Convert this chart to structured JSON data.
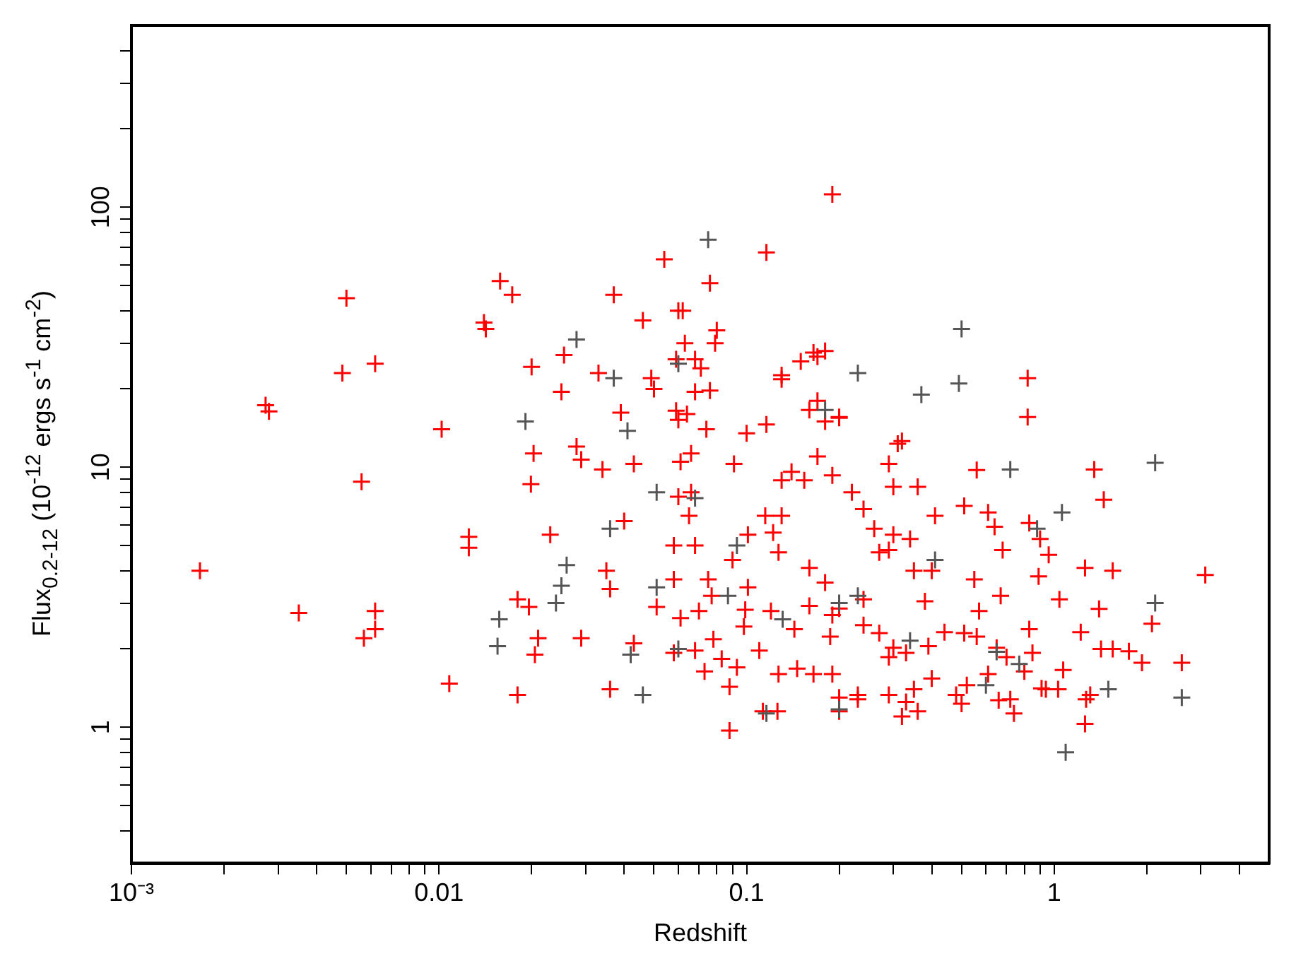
{
  "chart_data": {
    "type": "scatter",
    "xlabel": "Redshift",
    "ylabel": "Flux$_{0.2-12}$ (10$^{-12}$ ergs s$^{-1}$ cm$^{-2}$)",
    "log": "xy",
    "grid": false,
    "legend": false,
    "marker": "cross",
    "xlim": [
      0.001,
      5
    ],
    "ylim": [
      0.3,
      500
    ],
    "xticks": [
      {
        "value": 0.001,
        "label": "10⁻³"
      },
      {
        "value": 0.002,
        "label": null
      },
      {
        "value": 0.003,
        "label": null
      },
      {
        "value": 0.004,
        "label": null
      },
      {
        "value": 0.005,
        "label": null
      },
      {
        "value": 0.006,
        "label": null
      },
      {
        "value": 0.007,
        "label": null
      },
      {
        "value": 0.008,
        "label": null
      },
      {
        "value": 0.009,
        "label": null
      },
      0.01,
      {
        "value": 0.02,
        "label": null
      },
      {
        "value": 0.03,
        "label": null
      },
      {
        "value": 0.04,
        "label": null
      },
      {
        "value": 0.05,
        "label": null
      },
      {
        "value": 0.06,
        "label": null
      },
      {
        "value": 0.07,
        "label": null
      },
      {
        "value": 0.08,
        "label": null
      },
      {
        "value": 0.09,
        "label": null
      },
      0.1,
      {
        "value": 0.2,
        "label": null
      },
      {
        "value": 0.3,
        "label": null
      },
      {
        "value": 0.4,
        "label": null
      },
      {
        "value": 0.5,
        "label": null
      },
      {
        "value": 0.6,
        "label": null
      },
      {
        "value": 0.7,
        "label": null
      },
      {
        "value": 0.8,
        "label": null
      },
      {
        "value": 0.9,
        "label": null
      },
      1,
      {
        "value": 2,
        "label": null
      },
      {
        "value": 3,
        "label": null
      },
      {
        "value": 4,
        "label": null
      }
    ],
    "yticks": [
      {
        "value": 0.4,
        "label": null
      },
      {
        "value": 0.5,
        "label": null
      },
      {
        "value": 0.6,
        "label": null
      },
      {
        "value": 0.7,
        "label": null
      },
      {
        "value": 0.8,
        "label": null
      },
      {
        "value": 0.9,
        "label": null
      },
      1,
      {
        "value": 2,
        "label": null
      },
      {
        "value": 3,
        "label": null
      },
      {
        "value": 4,
        "label": null
      },
      {
        "value": 5,
        "label": null
      },
      {
        "value": 6,
        "label": null
      },
      {
        "value": 7,
        "label": null
      },
      {
        "value": 8,
        "label": null
      },
      {
        "value": 9,
        "label": null
      },
      10,
      {
        "value": 20,
        "label": null
      },
      {
        "value": 30,
        "label": null
      },
      {
        "value": 40,
        "label": null
      },
      {
        "value": 50,
        "label": null
      },
      {
        "value": 60,
        "label": null
      },
      {
        "value": 70,
        "label": null
      },
      {
        "value": 80,
        "label": null
      },
      {
        "value": 90,
        "label": null
      },
      100,
      {
        "value": 200,
        "label": null
      },
      {
        "value": 300,
        "label": null
      },
      {
        "value": 400,
        "label": null
      }
    ],
    "series": [
      {
        "color": "#555555",
        "x": [
          0.028,
          0.037,
          0.06,
          0.18,
          0.49,
          0.72,
          2.13,
          2.13,
          1.09,
          2.6,
          1.5,
          0.88,
          0.2,
          0.116,
          0.2,
          0.0157,
          0.0155,
          0.0191,
          0.026,
          0.025,
          0.036,
          0.051,
          0.041,
          0.068,
          0.093,
          0.087,
          0.131,
          0.06,
          0.051,
          0.042,
          0.23,
          0.34,
          0.41,
          0.6,
          0.65,
          0.77,
          0.024,
          1.06,
          0.046,
          0.075,
          0.23,
          0.5,
          0.37
        ],
        "values": [
          31,
          22,
          25,
          16.6,
          21,
          9.8,
          10.4,
          3.0,
          0.8,
          1.3,
          1.4,
          5.8,
          3.0,
          1.13,
          1.17,
          2.6,
          2.05,
          15,
          4.2,
          3.5,
          5.8,
          8,
          13.8,
          7.6,
          5,
          3.2,
          2.6,
          2.0,
          3.45,
          1.9,
          3.2,
          2.15,
          4.4,
          1.45,
          1.95,
          1.75,
          3.0,
          6.7,
          1.33,
          75,
          23,
          34,
          19
        ]
      },
      {
        "color": "#ff0000",
        "x": [
          0.00167,
          0.00273,
          0.0028,
          0.0035,
          0.00485,
          0.005,
          0.0056,
          0.0057,
          0.0062,
          0.0062,
          0.0062,
          0.0102,
          0.0108,
          0.0125,
          0.0125,
          0.014,
          0.0142,
          0.0158,
          0.0173,
          0.018,
          0.018,
          0.0196,
          0.0199,
          0.0203,
          0.02,
          0.0205,
          0.021,
          0.023,
          0.025,
          0.0255,
          0.028,
          0.029,
          0.029,
          0.033,
          0.034,
          0.035,
          0.036,
          0.036,
          0.037,
          0.039,
          0.04,
          0.043,
          0.043,
          0.046,
          0.049,
          0.05,
          0.051,
          0.054,
          0.06,
          0.063,
          0.19,
          0.116,
          0.13,
          0.17,
          0.18,
          0.2,
          0.31,
          0.82,
          0.82,
          1.35,
          1.45,
          3.1,
          1.26,
          1.55,
          1.4,
          1.42,
          1.75,
          1.27,
          1.26,
          1.03,
          0.94,
          1.07,
          2.6,
          0.85,
          0.89,
          0.9,
          0.67,
          1.22,
          1.93,
          2.08,
          0.96,
          0.83,
          1.04,
          0.91,
          1.31,
          0.72,
          0.66,
          0.5,
          0.48,
          0.56,
          0.51,
          0.61,
          0.64,
          0.68,
          0.55,
          0.41,
          0.32,
          0.36,
          0.3,
          0.29,
          0.24,
          0.22,
          0.19,
          0.17,
          0.154,
          0.14,
          0.13,
          0.1,
          0.091,
          0.066,
          0.061,
          0.066,
          0.06,
          0.065,
          0.058,
          0.068,
          0.058,
          0.075,
          0.077,
          0.061,
          0.078,
          0.058,
          0.068,
          0.073,
          0.088,
          0.083,
          0.093,
          0.098,
          0.099,
          0.101,
          0.115,
          0.122,
          0.127,
          0.13,
          0.12,
          0.11,
          0.127,
          0.146,
          0.165,
          0.16,
          0.143,
          0.16,
          0.18,
          0.19,
          0.187,
          0.2,
          0.19,
          0.24,
          0.23,
          0.2,
          0.23,
          0.29,
          0.33,
          0.35,
          0.29,
          0.3,
          0.33,
          0.27,
          0.24,
          0.27,
          0.29,
          0.26,
          0.3,
          0.34,
          0.35,
          0.4,
          0.38,
          0.44,
          0.39,
          0.51,
          0.56,
          0.57,
          0.65,
          0.61,
          0.7,
          0.8,
          0.83,
          0.4,
          0.52,
          0.07,
          0.09,
          0.101,
          0.074,
          0.088,
          0.113,
          0.126,
          0.2,
          0.32,
          0.36,
          0.74,
          0.076,
          0.062,
          0.08,
          0.079,
          0.165,
          0.15,
          0.13,
          0.17,
          0.16,
          0.2,
          0.18,
          0.059,
          0.068,
          0.071,
          0.068,
          0.076,
          0.059,
          0.064,
          0.06,
          0.116,
          1.55
        ],
        "values": [
          4.0,
          17.3,
          16.4,
          2.75,
          23,
          44.7,
          8.8,
          2.2,
          2.38,
          2.8,
          25,
          14,
          1.47,
          5.4,
          4.9,
          36,
          34,
          52,
          46,
          1.33,
          3.1,
          2.9,
          8.6,
          11.3,
          24.3,
          1.9,
          2.2,
          5.5,
          19.5,
          27,
          12,
          10.7,
          2.2,
          23,
          9.8,
          4.0,
          3.4,
          1.4,
          46,
          16.2,
          6.2,
          10.3,
          2.1,
          36.7,
          22,
          20,
          2.9,
          63,
          40,
          30,
          112,
          67,
          22.6,
          26.6,
          28,
          15.5,
          12.3,
          22,
          15.6,
          9.8,
          7.5,
          3.85,
          4.1,
          4.0,
          2.85,
          2.0,
          1.96,
          1.28,
          1.03,
          1.4,
          1.4,
          1.66,
          1.77,
          1.93,
          3.8,
          5.3,
          3.2,
          2.32,
          1.77,
          2.5,
          4.6,
          6.1,
          3.1,
          1.41,
          1.33,
          1.28,
          1.27,
          1.23,
          1.33,
          9.75,
          7.1,
          6.7,
          5.9,
          4.8,
          3.7,
          6.5,
          12.6,
          8.4,
          8.4,
          10.3,
          6.9,
          8.0,
          9.3,
          11,
          8.9,
          9.6,
          8.9,
          13.5,
          10.3,
          11.3,
          10.5,
          8.0,
          7.7,
          6.5,
          5.0,
          5.0,
          3.7,
          3.7,
          3.2,
          2.63,
          2.18,
          1.93,
          1.97,
          1.64,
          1.43,
          1.83,
          1.7,
          2.44,
          2.83,
          5.5,
          6.5,
          5.6,
          4.7,
          6.5,
          2.8,
          1.97,
          1.6,
          1.68,
          1.6,
          2.93,
          2.38,
          4.1,
          3.6,
          2.7,
          2.23,
          2.86,
          1.6,
          3.1,
          1.33,
          1.3,
          1.28,
          1.33,
          1.25,
          1.4,
          1.86,
          2.02,
          1.93,
          2.3,
          2.47,
          4.7,
          4.8,
          5.8,
          5.5,
          5.3,
          4.0,
          4.0,
          3.05,
          2.32,
          2.05,
          2.3,
          2.23,
          2.8,
          2.02,
          1.6,
          1.86,
          1.64,
          2.38,
          1.54,
          1.45,
          2.8,
          4.4,
          3.45,
          14,
          0.97,
          1.15,
          1.15,
          1.15,
          1.1,
          1.15,
          1.13,
          51,
          40,
          33.6,
          30,
          27.6,
          25.5,
          21.8,
          18,
          16.6,
          15.6,
          15,
          26,
          26,
          24,
          19.5,
          19.7,
          16.5,
          16,
          15.2,
          14.6,
          2.0
        ]
      }
    ]
  }
}
